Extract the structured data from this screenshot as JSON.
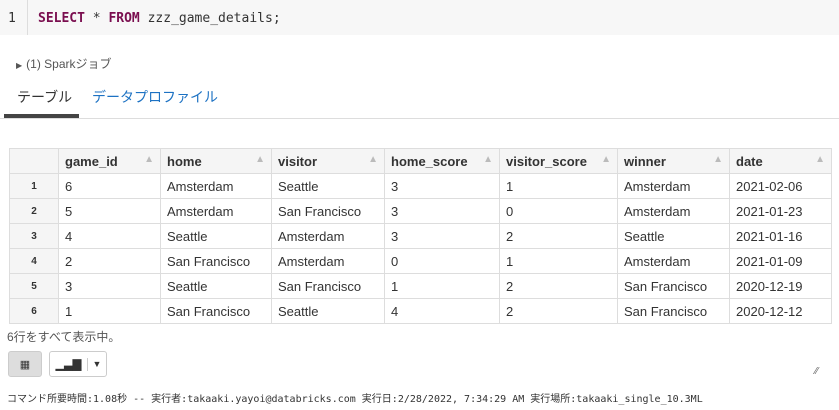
{
  "editor": {
    "line": "1",
    "kw1": "SELECT",
    "star": " * ",
    "kw2": "FROM",
    "rest": " zzz_game_details;"
  },
  "jobs": "(1) Sparkジョブ",
  "tabs": [
    "テーブル",
    "データプロファイル"
  ],
  "table": {
    "headers": [
      "game_id",
      "home",
      "visitor",
      "home_score",
      "visitor_score",
      "winner",
      "date"
    ],
    "rows": [
      [
        "1",
        "6",
        "Amsterdam",
        "Seattle",
        "3",
        "1",
        "Amsterdam",
        "2021-02-06"
      ],
      [
        "2",
        "5",
        "Amsterdam",
        "San Francisco",
        "3",
        "0",
        "Amsterdam",
        "2021-01-23"
      ],
      [
        "3",
        "4",
        "Seattle",
        "Amsterdam",
        "3",
        "2",
        "Seattle",
        "2021-01-16"
      ],
      [
        "4",
        "2",
        "San Francisco",
        "Amsterdam",
        "0",
        "1",
        "Amsterdam",
        "2021-01-09"
      ],
      [
        "5",
        "3",
        "Seattle",
        "San Francisco",
        "1",
        "2",
        "San Francisco",
        "2020-12-19"
      ],
      [
        "6",
        "1",
        "San Francisco",
        "Seattle",
        "4",
        "2",
        "San Francisco",
        "2020-12-12"
      ]
    ]
  },
  "row_count": "6行をすべて表示中。",
  "footer": "コマンド所要時間:1.08秒 -- 実行者:takaaki.yayoi@databricks.com 実行日:2/28/2022, 7:34:29 AM 実行場所:takaaki_single_10.3ML"
}
